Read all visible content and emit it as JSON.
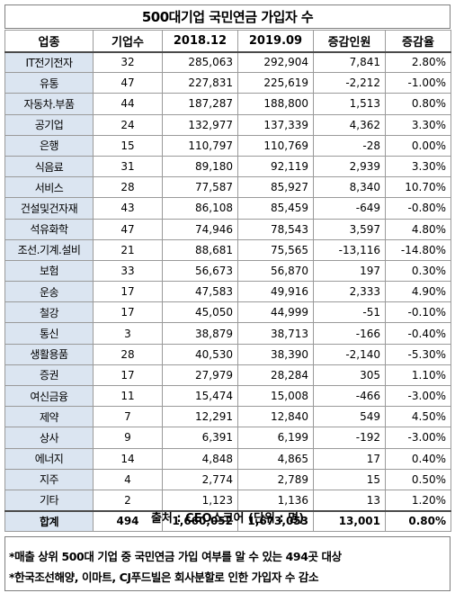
{
  "title": "500대기업 국민연금 가입자 수",
  "table": {
    "headers": [
      "업종",
      "기업수",
      "2018.12",
      "2019.09",
      "증감인원",
      "증감율"
    ],
    "rows": [
      [
        "IT전기전자",
        "32",
        "285,063",
        "292,904",
        "7,841",
        "2.80%"
      ],
      [
        "유통",
        "47",
        "227,831",
        "225,619",
        "-2,212",
        "-1.00%"
      ],
      [
        "자동차.부품",
        "44",
        "187,287",
        "188,800",
        "1,513",
        "0.80%"
      ],
      [
        "공기업",
        "24",
        "132,977",
        "137,339",
        "4,362",
        "3.30%"
      ],
      [
        "은행",
        "15",
        "110,797",
        "110,769",
        "-28",
        "0.00%"
      ],
      [
        "식음료",
        "31",
        "89,180",
        "92,119",
        "2,939",
        "3.30%"
      ],
      [
        "서비스",
        "28",
        "77,587",
        "85,927",
        "8,340",
        "10.70%"
      ],
      [
        "건설및건자재",
        "43",
        "86,108",
        "85,459",
        "-649",
        "-0.80%"
      ],
      [
        "석유화학",
        "47",
        "74,946",
        "78,543",
        "3,597",
        "4.80%"
      ],
      [
        "조선.기계.설비",
        "21",
        "88,681",
        "75,565",
        "-13,116",
        "-14.80%"
      ],
      [
        "보험",
        "33",
        "56,673",
        "56,870",
        "197",
        "0.30%"
      ],
      [
        "운송",
        "17",
        "47,583",
        "49,916",
        "2,333",
        "4.90%"
      ],
      [
        "철강",
        "17",
        "45,050",
        "44,999",
        "-51",
        "-0.10%"
      ],
      [
        "통신",
        "3",
        "38,879",
        "38,713",
        "-166",
        "-0.40%"
      ],
      [
        "생활용품",
        "28",
        "40,530",
        "38,390",
        "-2,140",
        "-5.30%"
      ],
      [
        "증권",
        "17",
        "27,979",
        "28,284",
        "305",
        "1.10%"
      ],
      [
        "여신금융",
        "11",
        "15,474",
        "15,008",
        "-466",
        "-3.00%"
      ],
      [
        "제약",
        "7",
        "12,291",
        "12,840",
        "549",
        "4.50%"
      ],
      [
        "상사",
        "9",
        "6,391",
        "6,199",
        "-192",
        "-3.00%"
      ],
      [
        "에너지",
        "14",
        "4,848",
        "4,865",
        "17",
        "0.40%"
      ],
      [
        "지주",
        "4",
        "2,774",
        "2,789",
        "15",
        "0.50%"
      ],
      [
        "기타",
        "2",
        "1,123",
        "1,136",
        "13",
        "1.20%"
      ]
    ],
    "total": [
      "합계",
      "494",
      "1,660,052",
      "1,673,053",
      "13,001",
      "0.80%"
    ]
  },
  "source": "출처 : CEO스코어 (단위 : 명)",
  "notes": [
    "*매출 상위 500대 기업 중 국민연금 가입 여부를 알 수 있는 494곳 대상",
    "*한국조선해양, 이마트, CJ푸드빌은 회사분할로 인한 가입자 수 감소"
  ],
  "colors": {
    "category_bg": "#dbe5f1",
    "border": "#9a9a9a"
  }
}
